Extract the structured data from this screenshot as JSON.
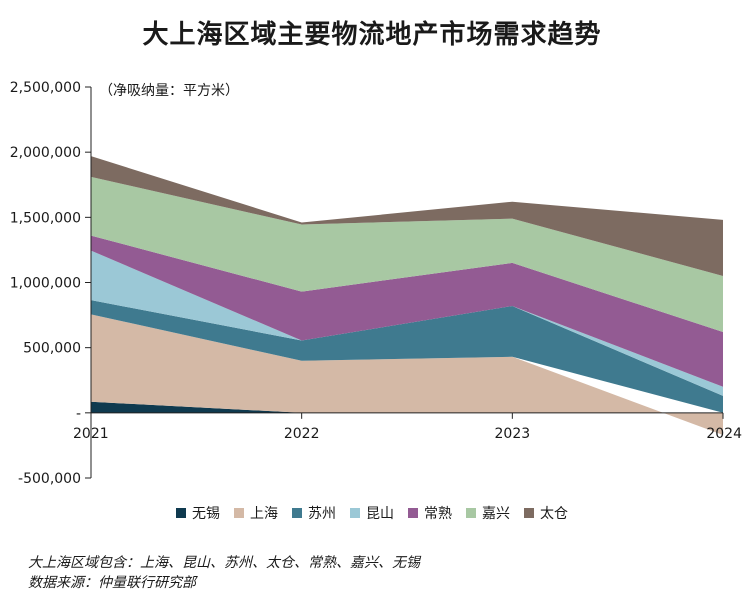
{
  "title": "大上海区域主要物流地产市场需求趋势",
  "unit_label": "（净吸纳量：平方米）",
  "footnotes": [
    "大上海区域包含：上海、昆山、苏州、太仓、常熟、嘉兴、无锡",
    "数据来源：仲量联行研究部"
  ],
  "chart_data": {
    "type": "area",
    "stacked": true,
    "x": [
      "2021",
      "2022",
      "2023",
      "2024"
    ],
    "ylim": [
      -500000,
      2500000
    ],
    "yticks": [
      2500000,
      2000000,
      1500000,
      1000000,
      500000,
      0,
      -500000
    ],
    "ytick_labels": [
      "2,500,000",
      "2,000,000",
      "1,500,000",
      "1,000,000",
      "500,000",
      "-",
      "-500,000"
    ],
    "legend_position": "bottom",
    "series": [
      {
        "name": "无锡",
        "color": "#0f3a4f",
        "values": [
          85000,
          0,
          0,
          0
        ]
      },
      {
        "name": "上海",
        "color": "#d4b9a6",
        "values": [
          670000,
          400000,
          430000,
          -170000
        ]
      },
      {
        "name": "苏州",
        "color": "#3f7a8f",
        "values": [
          110000,
          155000,
          390000,
          130000
        ]
      },
      {
        "name": "昆山",
        "color": "#9bc8d6",
        "values": [
          380000,
          0,
          0,
          70000
        ]
      },
      {
        "name": "常熟",
        "color": "#935b93",
        "values": [
          115000,
          375000,
          330000,
          420000
        ]
      },
      {
        "name": "嘉兴",
        "color": "#a8c8a3",
        "values": [
          450000,
          515000,
          340000,
          430000
        ]
      },
      {
        "name": "太仓",
        "color": "#7d6b61",
        "values": [
          160000,
          15000,
          130000,
          430000
        ]
      }
    ]
  }
}
